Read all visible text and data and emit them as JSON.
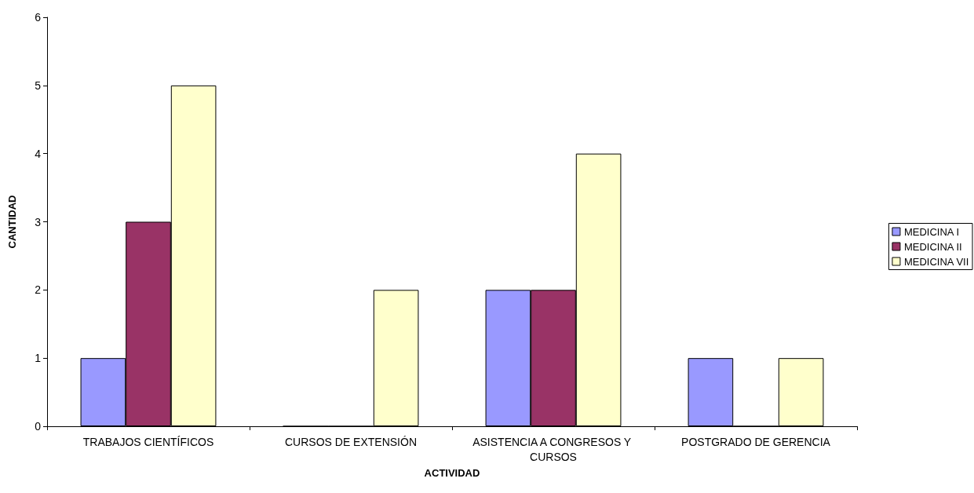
{
  "chart_data": {
    "type": "bar",
    "xlabel": "ACTIVIDAD",
    "ylabel": "CANTIDAD",
    "categories": [
      "TRABAJOS CIENTÍFICOS",
      "CURSOS DE EXTENSIÓN",
      "ASISTENCIA A CONGRESOS Y CURSOS",
      "POSTGRADO DE GERENCIA"
    ],
    "series": [
      {
        "name": "MEDICINA I",
        "color": "#9999ff",
        "values": [
          1,
          0,
          2,
          1
        ]
      },
      {
        "name": "MEDICINA II",
        "color": "#993366",
        "values": [
          3,
          0,
          2,
          0
        ]
      },
      {
        "name": "MEDICINA VII",
        "color": "#ffffcc",
        "values": [
          5,
          2,
          4,
          1
        ]
      }
    ],
    "ylim": [
      0,
      6
    ],
    "yticks": [
      0,
      1,
      2,
      3,
      4,
      5,
      6
    ],
    "grid": false,
    "legend": "right"
  }
}
